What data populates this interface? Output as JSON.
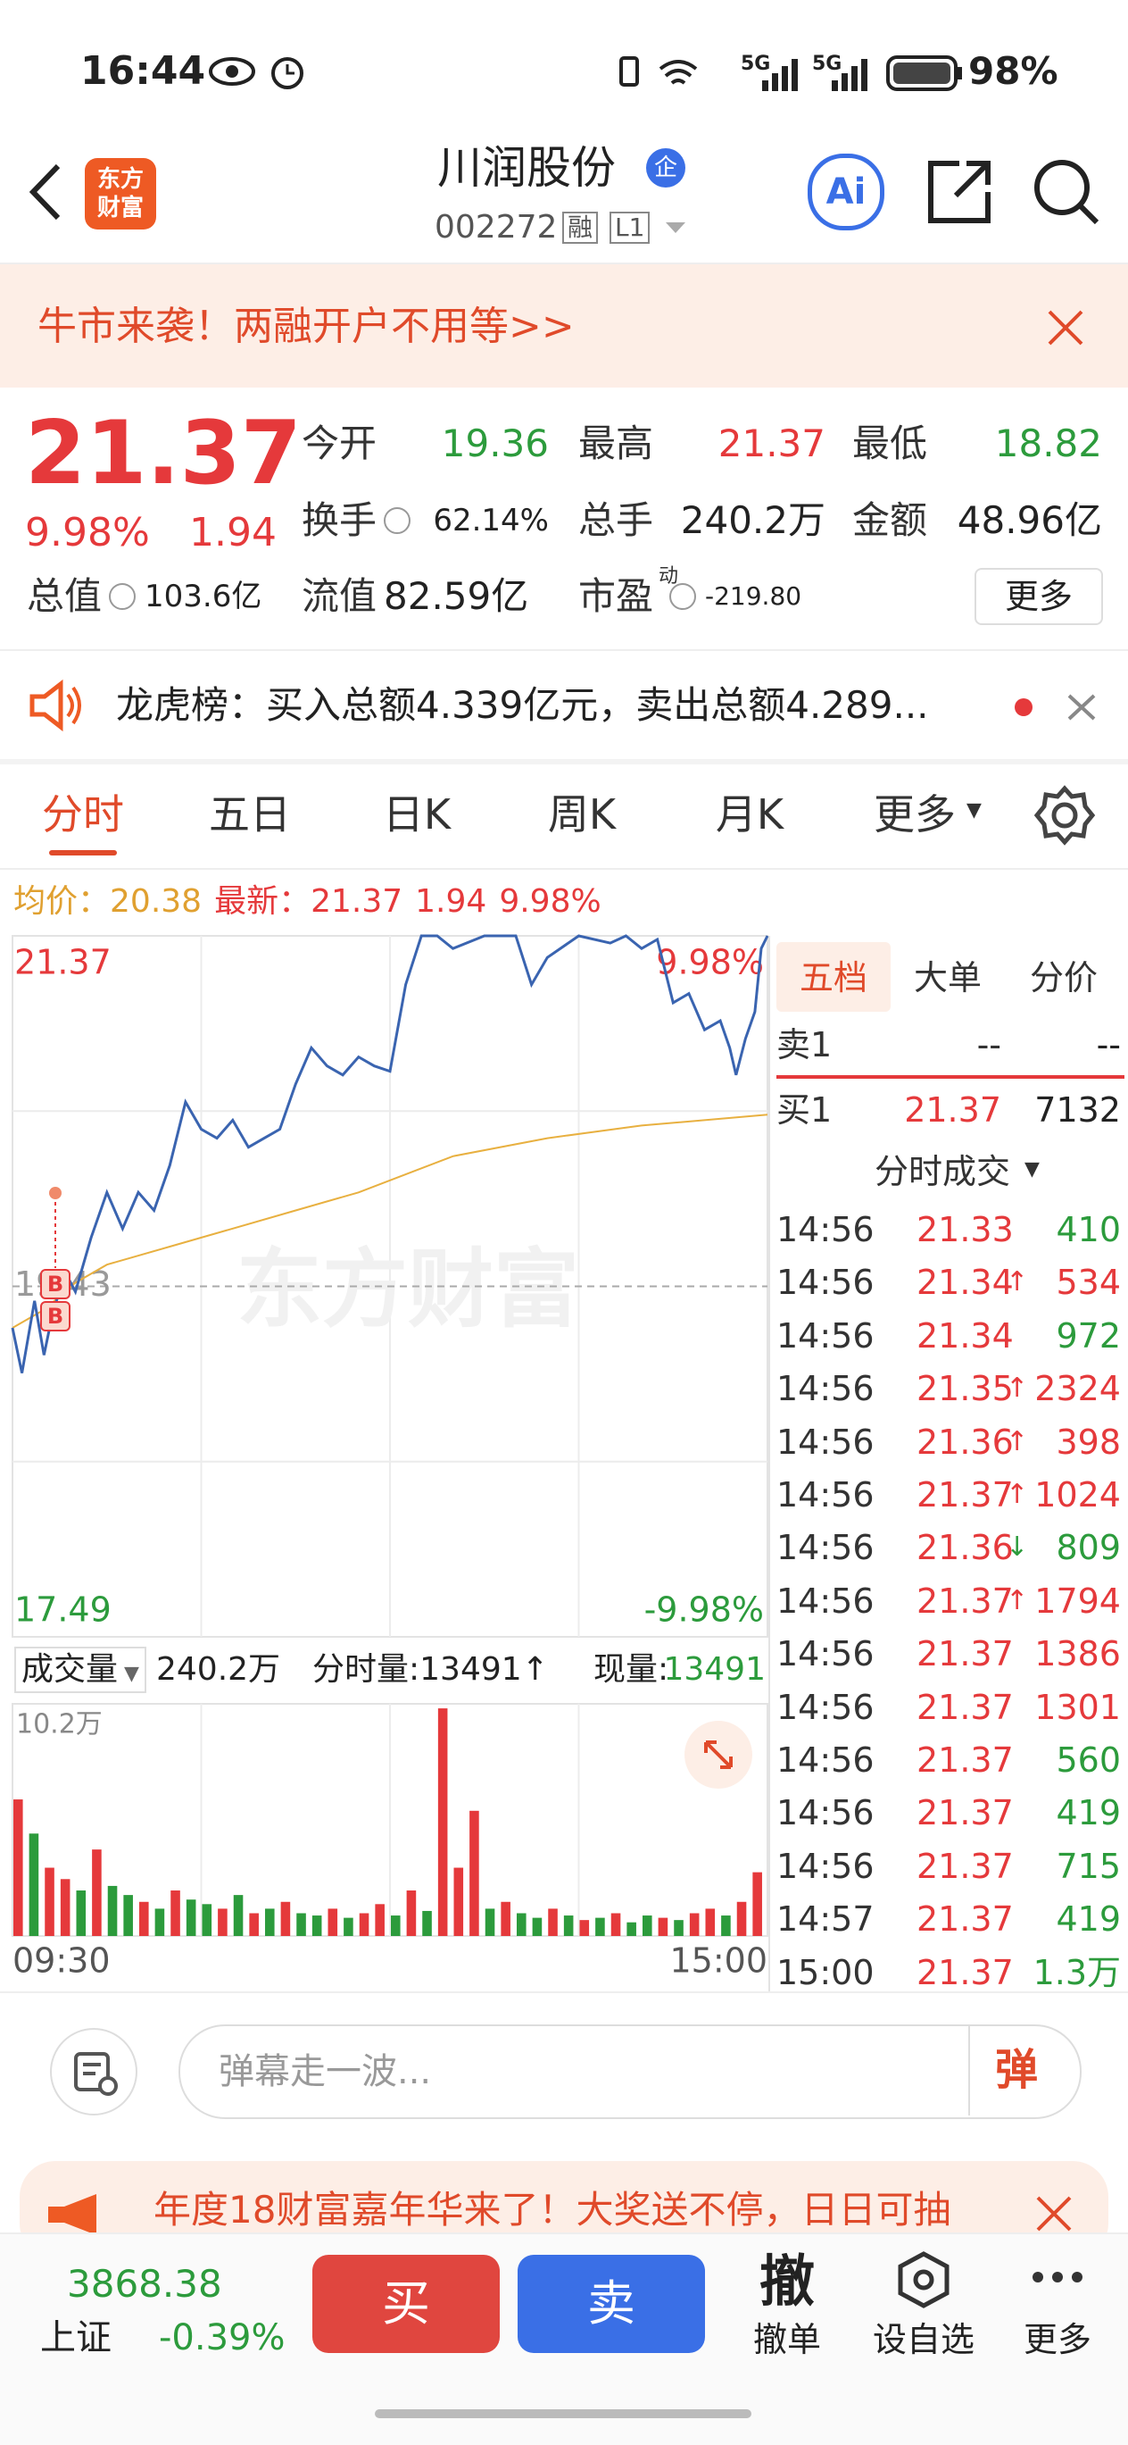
{
  "status_bar": {
    "time": "16:44",
    "network": [
      "5G",
      "5G"
    ],
    "battery": "98%"
  },
  "header": {
    "logo": [
      "东方",
      "财富"
    ],
    "title": "川润股份",
    "badge": "企",
    "code": "002272",
    "tags": [
      "融",
      "L1"
    ],
    "ai": "Ai"
  },
  "banner": {
    "text": "牛市来袭！两融开户不用等>>"
  },
  "quote": {
    "price": "21.37",
    "change_pct": "9.98%",
    "change": "1.94",
    "fields": [
      {
        "label": "今开",
        "value": "19.36",
        "color": "#2c9b3c"
      },
      {
        "label": "最高",
        "value": "21.37",
        "color": "#e5393b"
      },
      {
        "label": "最低",
        "value": "18.82",
        "color": "#2c9b3c"
      },
      {
        "label": "换手",
        "value": "62.14%",
        "info": true
      },
      {
        "label": "总手",
        "value": "240.2万"
      },
      {
        "label": "金额",
        "value": "48.96亿"
      },
      {
        "label": "总值",
        "value": "103.6亿",
        "info": true
      },
      {
        "label": "流值",
        "value": "82.59亿"
      },
      {
        "label": "市盈",
        "sup": "动",
        "value": "-219.80",
        "info": true
      }
    ],
    "more": "更多"
  },
  "news": {
    "text": "龙虎榜：买入总额4.339亿元，卖出总额4.289..."
  },
  "tabs": {
    "items": [
      "分时",
      "五日",
      "日K",
      "周K",
      "月K",
      "更多"
    ],
    "active": 0
  },
  "info_line": {
    "avg_label": "均价：",
    "avg": "20.38",
    "last_label": "最新：",
    "last": "21.37",
    "change": "1.94",
    "change_pct": "9.98%"
  },
  "chart_data": [
    {
      "type": "line",
      "watermark": "东方财富",
      "annotations": [
        "B",
        "B"
      ],
      "xlim": [
        0,
        240
      ],
      "ylim": [
        17.49,
        21.37
      ],
      "yticks": [
        17.49,
        19.43,
        21.37
      ],
      "y2lim": [
        -9.98,
        9.98
      ],
      "y2ticks": [
        {
          "value": -9.98,
          "label": "-9.98%"
        },
        {
          "value": 9.98,
          "label": "9.98%"
        }
      ],
      "series": [
        {
          "color": "#3a64b0",
          "x": [
            0,
            3,
            7,
            10,
            13,
            17,
            20,
            25,
            30,
            35,
            40,
            45,
            50,
            55,
            60,
            65,
            70,
            75,
            80,
            85,
            90,
            95,
            100,
            105,
            110,
            115,
            120,
            125,
            130,
            135,
            140,
            150,
            160,
            165,
            170,
            180,
            190,
            195,
            200,
            205,
            210,
            215,
            220,
            225,
            228,
            230,
            233,
            236,
            238,
            240
          ],
          "values": [
            19.2,
            18.95,
            19.35,
            19.05,
            19.3,
            19.5,
            19.4,
            19.7,
            19.95,
            19.75,
            19.95,
            19.85,
            20.1,
            20.45,
            20.3,
            20.25,
            20.35,
            20.2,
            20.25,
            20.3,
            20.55,
            20.75,
            20.65,
            20.6,
            20.7,
            20.65,
            20.62,
            21.1,
            21.37,
            21.37,
            21.3,
            21.37,
            21.37,
            21.1,
            21.25,
            21.37,
            21.33,
            21.37,
            21.3,
            21.35,
            21.0,
            21.05,
            20.85,
            20.9,
            20.75,
            20.6,
            20.8,
            20.95,
            21.3,
            21.37
          ]
        },
        {
          "color": "#e8b040",
          "x": [
            0,
            10,
            20,
            30,
            50,
            70,
            90,
            110,
            125,
            140,
            170,
            200,
            240
          ],
          "values": [
            19.2,
            19.3,
            19.45,
            19.55,
            19.65,
            19.75,
            19.85,
            19.95,
            20.05,
            20.15,
            20.25,
            20.32,
            20.38
          ]
        }
      ]
    },
    {
      "type": "bar",
      "xlim": [
        0,
        240
      ],
      "xticks": [
        {
          "value": 0,
          "label": "09:30"
        },
        {
          "value": 240,
          "label": "15:00"
        }
      ],
      "ylim": [
        0,
        102000
      ],
      "yticks": [
        {
          "value": 102000,
          "label": "10.2万"
        }
      ],
      "x": [
        0,
        5,
        10,
        15,
        20,
        25,
        30,
        35,
        40,
        45,
        50,
        55,
        60,
        65,
        70,
        75,
        80,
        85,
        90,
        95,
        100,
        105,
        110,
        115,
        120,
        125,
        130,
        135,
        140,
        145,
        150,
        155,
        160,
        165,
        170,
        175,
        180,
        185,
        190,
        195,
        200,
        205,
        210,
        215,
        220,
        225,
        230,
        235
      ],
      "values": [
        60000,
        45000,
        30000,
        25000,
        20000,
        38000,
        22000,
        18000,
        15000,
        12000,
        20000,
        16000,
        14000,
        12000,
        18000,
        10000,
        12000,
        15000,
        10000,
        9000,
        12000,
        8000,
        10000,
        14000,
        9000,
        20000,
        11000,
        100000,
        30000,
        55000,
        12000,
        15000,
        10000,
        8000,
        12000,
        9000,
        7000,
        8000,
        10000,
        6000,
        9000,
        8000,
        7000,
        10000,
        12000,
        9000,
        15000,
        28000
      ],
      "colors": [
        "#e5393b",
        "#2c9b3c",
        "#e5393b",
        "#e5393b",
        "#2c9b3c",
        "#e5393b",
        "#2c9b3c",
        "#2c9b3c",
        "#e5393b",
        "#2c9b3c",
        "#e5393b",
        "#2c9b3c",
        "#2c9b3c",
        "#e5393b",
        "#2c9b3c",
        "#e5393b",
        "#2c9b3c",
        "#e5393b",
        "#2c9b3c",
        "#2c9b3c",
        "#e5393b",
        "#2c9b3c",
        "#e5393b",
        "#e5393b",
        "#2c9b3c",
        "#e5393b",
        "#2c9b3c",
        "#e5393b",
        "#e5393b",
        "#e5393b",
        "#2c9b3c",
        "#e5393b",
        "#2c9b3c",
        "#2c9b3c",
        "#e5393b",
        "#2c9b3c",
        "#e5393b",
        "#2c9b3c",
        "#e5393b",
        "#2c9b3c",
        "#2c9b3c",
        "#e5393b",
        "#2c9b3c",
        "#e5393b",
        "#e5393b",
        "#2c9b3c",
        "#e5393b",
        "#e5393b"
      ]
    }
  ],
  "volume_header": {
    "label": "成交量",
    "total": "240.2万",
    "tick_volume": "分时量:13491↑",
    "current_label": "现量:",
    "current": "13491"
  },
  "side_panel": {
    "tabs": [
      "五档",
      "大单",
      "分价"
    ],
    "ask": {
      "label": "卖1",
      "price": "--",
      "volume": "--"
    },
    "bid": {
      "label": "买1",
      "price": "21.37",
      "volume": "7132"
    },
    "trades_title": "分时成交",
    "trades": [
      {
        "time": "14:56",
        "price": "21.33",
        "volume": "410",
        "color": "#2c9b3c"
      },
      {
        "time": "14:56",
        "price": "21.34",
        "arrow": "↑",
        "volume": "534",
        "color": "#e5393b"
      },
      {
        "time": "14:56",
        "price": "21.34",
        "volume": "972",
        "color": "#2c9b3c"
      },
      {
        "time": "14:56",
        "price": "21.35",
        "arrow": "↑",
        "volume": "2324",
        "color": "#e5393b"
      },
      {
        "time": "14:56",
        "price": "21.36",
        "arrow": "↑",
        "volume": "398",
        "color": "#e5393b"
      },
      {
        "time": "14:56",
        "price": "21.37",
        "arrow": "↑",
        "volume": "1024",
        "color": "#e5393b"
      },
      {
        "time": "14:56",
        "price": "21.36",
        "arrow": "↓",
        "volume": "809",
        "color": "#2c9b3c"
      },
      {
        "time": "14:56",
        "price": "21.37",
        "arrow": "↑",
        "volume": "1794",
        "color": "#e5393b"
      },
      {
        "time": "14:56",
        "price": "21.37",
        "volume": "1386",
        "color": "#e5393b"
      },
      {
        "time": "14:56",
        "price": "21.37",
        "volume": "1301",
        "color": "#e5393b"
      },
      {
        "time": "14:56",
        "price": "21.37",
        "volume": "560",
        "color": "#2c9b3c"
      },
      {
        "time": "14:56",
        "price": "21.37",
        "volume": "419",
        "color": "#2c9b3c"
      },
      {
        "time": "14:56",
        "price": "21.37",
        "volume": "715",
        "color": "#2c9b3c"
      },
      {
        "time": "14:57",
        "price": "21.37",
        "volume": "419",
        "color": "#2c9b3c"
      },
      {
        "time": "15:00",
        "price": "21.37",
        "volume": "1.3万",
        "color": "#2c9b3c"
      }
    ]
  },
  "comment_bar": {
    "placeholder": "弹幕走一波...",
    "button": "弹"
  },
  "ad": {
    "text": "年度18财富嘉年华来了！大奖送不停，日日可抽"
  },
  "bottom_bar": {
    "index_value": "3868.38",
    "index_name": "上证",
    "index_change": "-0.39%",
    "buy": "买",
    "sell": "卖",
    "actions": [
      {
        "icon": "撤",
        "label": "撤单"
      },
      {
        "label": "设自选"
      },
      {
        "label": "更多"
      }
    ]
  }
}
